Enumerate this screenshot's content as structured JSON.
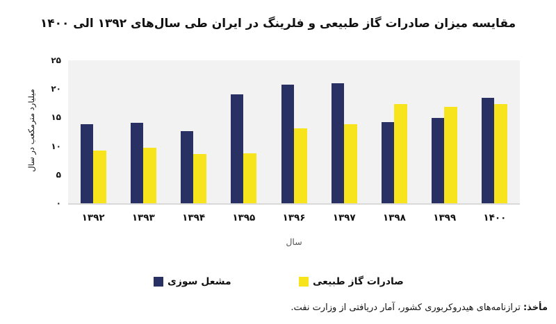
{
  "title": "مقایسه میزان صادرات گاز طبیعی و فلرینگ در ایران طی سال‌های ۱۳۹۲ الی ۱۴۰۰",
  "chart_data": {
    "type": "bar",
    "title": "مقایسه میزان صادرات گاز طبیعی و فلرینگ در ایران طی سال‌های ۱۳۹۲ الی ۱۴۰۰",
    "categories": [
      "۱۳۹۲",
      "۱۳۹۳",
      "۱۳۹۴",
      "۱۳۹۵",
      "۱۳۹۶",
      "۱۳۹۷",
      "۱۳۹۸",
      "۱۳۹۹",
      "۱۴۰۰"
    ],
    "categories_values": [
      1392,
      1393,
      1394,
      1395,
      1396,
      1397,
      1398,
      1399,
      1400
    ],
    "series": [
      {
        "name": "مشعل سوزی",
        "color": "#283064",
        "values": [
          13.8,
          14.1,
          12.6,
          19,
          20.7,
          21,
          14.2,
          14.9,
          18.5
        ]
      },
      {
        "name": "صادرات گاز طبیعی",
        "color": "#f7e41c",
        "values": [
          9.2,
          9.7,
          8.6,
          8.7,
          13.1,
          13.9,
          17.4,
          16.9,
          17.3
        ]
      }
    ],
    "xlabel": "سال",
    "ylabel": "میلیارد مترمکعب در سال",
    "ylim": [
      0,
      25
    ],
    "ytick_values": [
      0,
      5,
      10,
      15,
      20,
      25
    ],
    "ytick_labels": [
      "۰",
      "۵",
      "۱۰",
      "۱۵",
      "۲۰",
      "۲۵"
    ],
    "grid": false,
    "legend_position": "bottom",
    "plot_background": "#f2f2f2"
  },
  "source": {
    "label": "مأخذ:",
    "text": "ترازنامه‌های هیدروکربوری کشور، آمار دریافتی از وزارت نفت."
  },
  "colors": {
    "flare": "#283064",
    "export": "#f7e41c",
    "axis_line": "#d9d9d9",
    "plot_background": "#f2f2f2"
  }
}
